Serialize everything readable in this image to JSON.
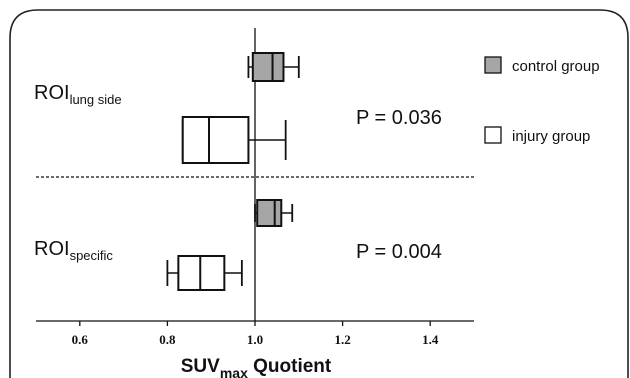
{
  "chart_data": {
    "type": "boxplot",
    "orientation": "horizontal",
    "xlabel": {
      "main": "SUV",
      "sub": "max",
      "rest": " Quotient"
    },
    "xlim": [
      0.5,
      1.5
    ],
    "xticks": [
      0.6,
      0.8,
      1.0,
      1.2,
      1.4
    ],
    "xtick_labels": [
      "0.6",
      "0.8",
      "1.0",
      "1.2",
      "1.4"
    ],
    "reference_line": 1.0,
    "divider": "dashed",
    "panels": [
      {
        "label": {
          "main": "ROI",
          "sub": "lung side"
        },
        "pvalue": "P = 0.036",
        "boxes": [
          {
            "series": "control group",
            "whisker_low": 0.985,
            "q1": 0.995,
            "median": 1.04,
            "q3": 1.065,
            "whisker_high": 1.1
          },
          {
            "series": "injury group",
            "whisker_low": 0.835,
            "q1": 0.835,
            "median": 0.895,
            "q3": 0.985,
            "whisker_high": 1.07
          }
        ]
      },
      {
        "label": {
          "main": "ROI",
          "sub": "specific"
        },
        "pvalue": "P = 0.004",
        "boxes": [
          {
            "series": "control group",
            "whisker_low": 1.0,
            "q1": 1.005,
            "median": 1.045,
            "q3": 1.06,
            "whisker_high": 1.085
          },
          {
            "series": "injury group",
            "whisker_low": 0.8,
            "q1": 0.825,
            "median": 0.875,
            "q3": 0.93,
            "whisker_high": 0.97
          }
        ]
      }
    ],
    "series": [
      {
        "name": "control group",
        "fill": "#a6a6a6"
      },
      {
        "name": "injury group",
        "fill": "#ffffff"
      }
    ],
    "legend": "right"
  }
}
